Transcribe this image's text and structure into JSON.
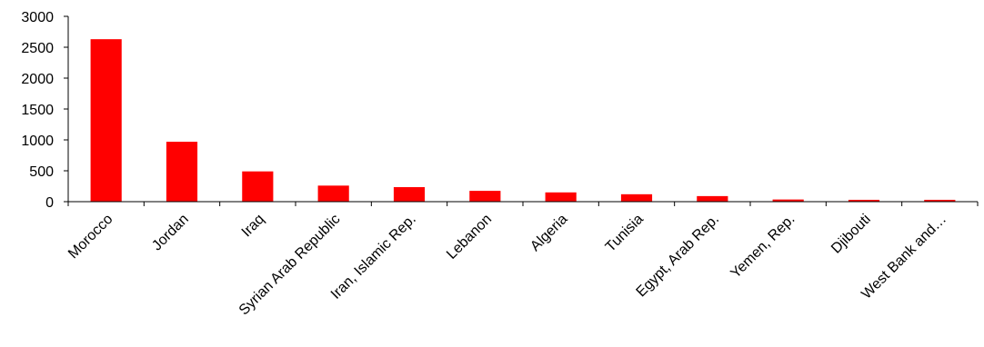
{
  "chart_data": {
    "type": "bar",
    "categories": [
      "Morocco",
      "Jordan",
      "Iraq",
      "Syrian Arab Republic",
      "Iran, Islamic Rep.",
      "Lebanon",
      "Algeria",
      "Tunisia",
      "Egypt, Arab Rep.",
      "Yemen, Rep.",
      "Djibouti",
      "West Bank and…"
    ],
    "values": [
      2630,
      970,
      490,
      260,
      235,
      175,
      150,
      120,
      90,
      35,
      30,
      30
    ],
    "ylim": [
      0,
      3000
    ],
    "yticks": [
      0,
      500,
      1000,
      1500,
      2000,
      2500,
      3000
    ],
    "grid": false,
    "legend": "none",
    "colors": {
      "bar": "#ff0000",
      "axis": "#000000"
    }
  }
}
